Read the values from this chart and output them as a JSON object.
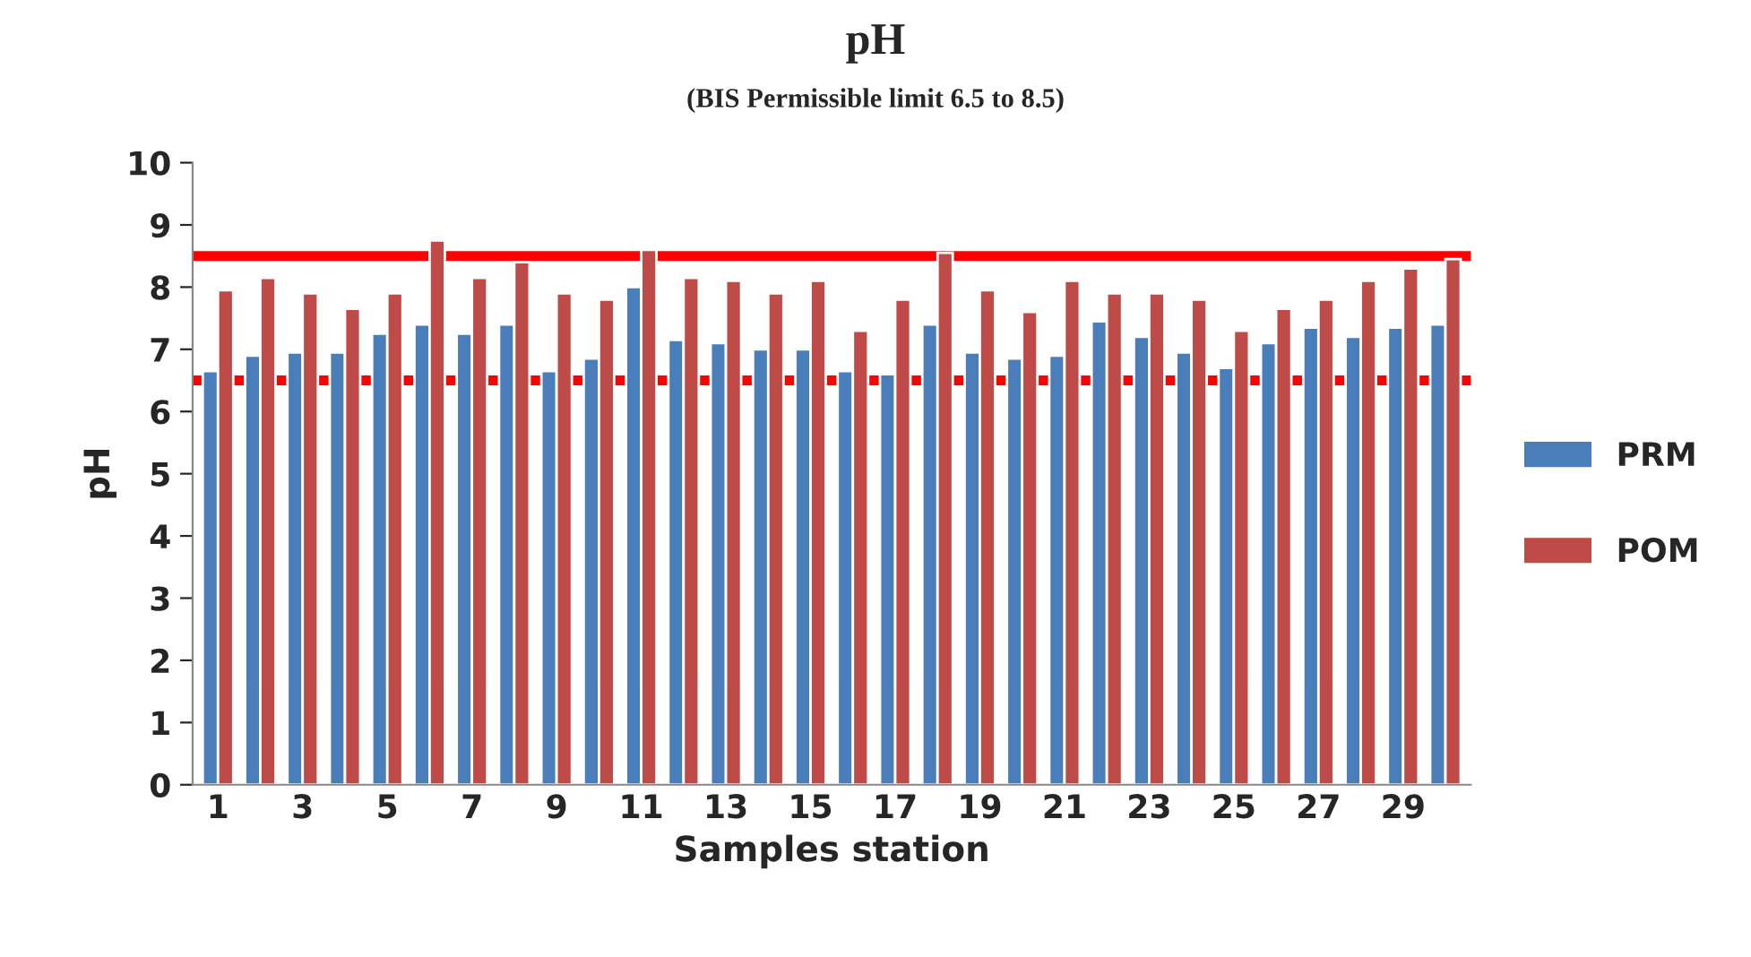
{
  "chart_data": {
    "type": "bar",
    "title": "pH",
    "subtitle": "(BIS Permissible limit 6.5 to 8.5)",
    "xlabel": "Samples station",
    "ylabel": "pH",
    "categories": [
      "1",
      null,
      "3",
      null,
      "5",
      null,
      "7",
      null,
      "9",
      null,
      "11",
      null,
      "13",
      null,
      "15",
      null,
      "17",
      null,
      "19",
      null,
      "21",
      null,
      "23",
      null,
      "25",
      null,
      "27",
      null,
      "29",
      null
    ],
    "series": [
      {
        "name": "PRM",
        "color": "#4a7ebb",
        "values": [
          6.65,
          6.9,
          6.95,
          6.95,
          7.25,
          7.4,
          7.25,
          7.4,
          6.65,
          6.85,
          8.0,
          7.15,
          7.1,
          7.0,
          7.0,
          6.65,
          6.6,
          7.4,
          6.95,
          6.85,
          6.9,
          7.45,
          7.2,
          6.95,
          6.7,
          7.1,
          7.35,
          7.2,
          7.35,
          7.4
        ]
      },
      {
        "name": "POM",
        "color": "#be4b48",
        "values": [
          7.95,
          8.15,
          7.9,
          7.65,
          7.9,
          8.75,
          8.15,
          8.4,
          7.9,
          7.8,
          8.6,
          8.15,
          8.1,
          7.9,
          8.1,
          7.3,
          7.8,
          8.55,
          7.95,
          7.6,
          8.1,
          7.9,
          7.9,
          7.8,
          7.3,
          7.65,
          7.8,
          8.1,
          8.3,
          8.45
        ]
      }
    ],
    "ylim": [
      0,
      10
    ],
    "yticks": [
      0,
      1,
      2,
      3,
      4,
      5,
      6,
      7,
      8,
      9,
      10
    ],
    "ref_lines": [
      {
        "axis": "y",
        "value": 6.5,
        "color": "#ff0000"
      },
      {
        "axis": "y",
        "value": 8.5,
        "color": "#ff0000"
      }
    ],
    "grid": false,
    "legend": "right"
  }
}
